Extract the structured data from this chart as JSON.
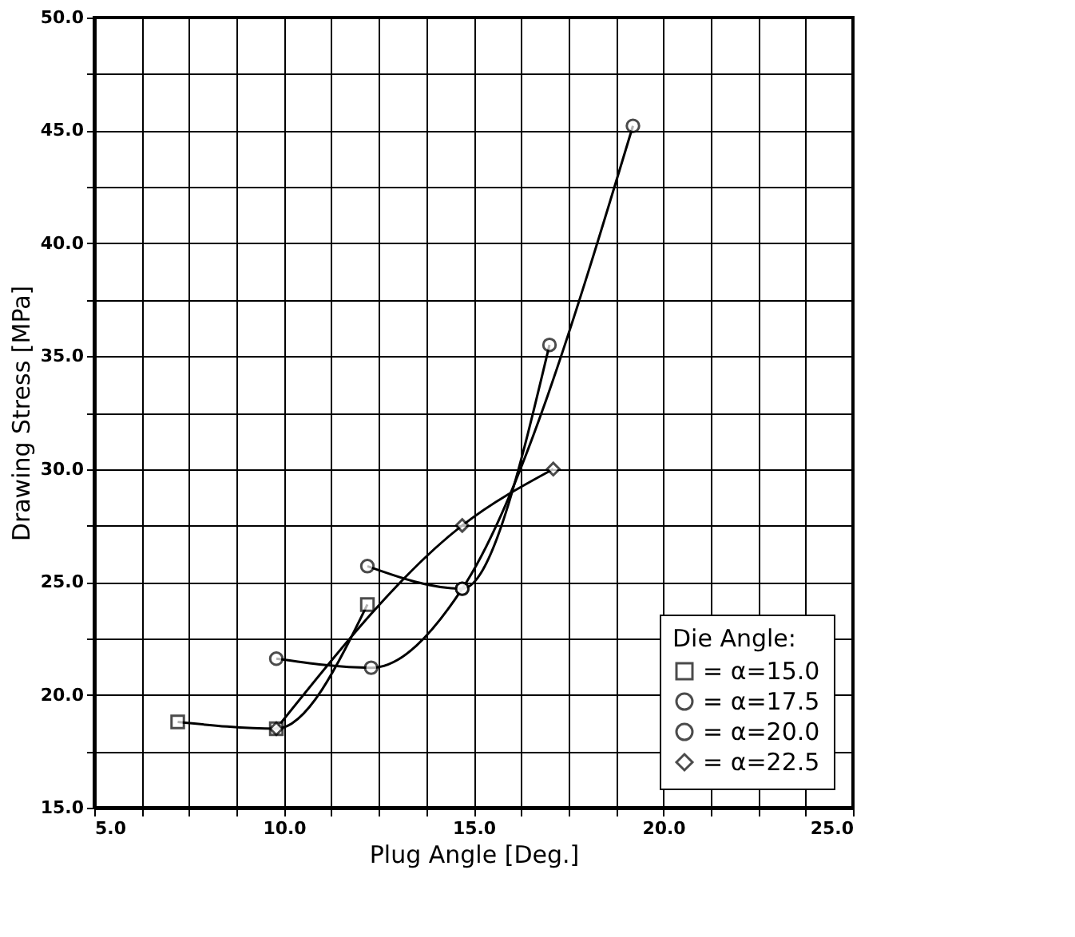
{
  "chart_data": {
    "type": "line",
    "xlabel": "Plug Angle [Deg.]",
    "ylabel": "Drawing Stress [MPa]",
    "legend_title": "Die Angle:",
    "legend": "bottom right",
    "grid": true,
    "line_style": "solid",
    "xlim": [
      5,
      25
    ],
    "ylim": [
      15,
      50
    ],
    "xticks": [
      {
        "value": 5,
        "label": "5.0"
      },
      {
        "value": 6.25,
        "label": null
      },
      {
        "value": 7.5,
        "label": null
      },
      {
        "value": 8.75,
        "label": null
      },
      {
        "value": 10,
        "label": "10.0"
      },
      {
        "value": 11.25,
        "label": null
      },
      {
        "value": 12.5,
        "label": null
      },
      {
        "value": 13.75,
        "label": null
      },
      {
        "value": 15,
        "label": "15.0"
      },
      {
        "value": 16.25,
        "label": null
      },
      {
        "value": 17.5,
        "label": null
      },
      {
        "value": 18.75,
        "label": null
      },
      {
        "value": 20,
        "label": "20.0"
      },
      {
        "value": 21.25,
        "label": null
      },
      {
        "value": 22.5,
        "label": null
      },
      {
        "value": 23.75,
        "label": null
      },
      {
        "value": 25,
        "label": "25.0"
      }
    ],
    "yticks": [
      {
        "value": 15,
        "label": "15.0"
      },
      {
        "value": 17.5,
        "label": null
      },
      {
        "value": 20,
        "label": "20.0"
      },
      {
        "value": 22.5,
        "label": null
      },
      {
        "value": 25,
        "label": "25.0"
      },
      {
        "value": 27.5,
        "label": null
      },
      {
        "value": 30,
        "label": "30.0"
      },
      {
        "value": 32.5,
        "label": null
      },
      {
        "value": 35,
        "label": "35.0"
      },
      {
        "value": 37.5,
        "label": null
      },
      {
        "value": 40,
        "label": "40.0"
      },
      {
        "value": 42.5,
        "label": null
      },
      {
        "value": 45,
        "label": "45.0"
      },
      {
        "value": 47.5,
        "label": null
      },
      {
        "value": 50,
        "label": "50.0"
      }
    ],
    "series": [
      {
        "name": "= α=15.0",
        "color": "#000000",
        "marker": "square",
        "x": [
          7.2,
          9.8,
          12.2
        ],
        "values": [
          18.8,
          18.5,
          24.0
        ]
      },
      {
        "name": "= α=17.5",
        "color": "#000000",
        "marker": "circle",
        "x": [
          9.8,
          12.3,
          14.7,
          19.2
        ],
        "values": [
          21.6,
          21.2,
          24.7,
          45.2
        ]
      },
      {
        "name": "= α=20.0",
        "color": "#000000",
        "marker": "circle",
        "x": [
          12.2,
          14.7,
          17.0
        ],
        "values": [
          25.7,
          24.7,
          35.5
        ]
      },
      {
        "name": "= α=22.5",
        "color": "#000000",
        "marker": "diamond",
        "x": [
          9.8,
          14.7,
          17.1
        ],
        "values": [
          18.5,
          27.5,
          30.0
        ]
      }
    ]
  }
}
